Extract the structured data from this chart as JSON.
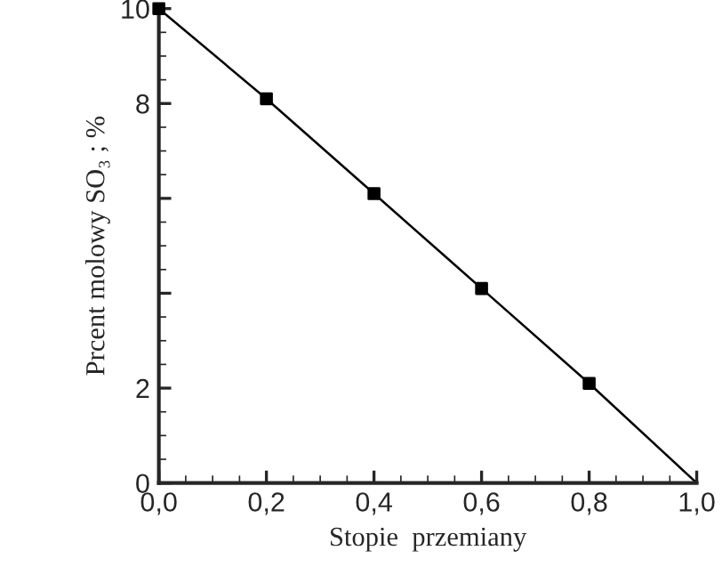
{
  "chart_data": {
    "type": "line",
    "xlabel": "Stopie  przemiany",
    "ylabel": "Prcent molowy SO₃ ; %",
    "series": [
      {
        "color": "#000000",
        "marker": "none",
        "x": [
          0,
          0.2,
          0.4,
          0.6,
          0.8,
          1.0
        ],
        "values": [
          10,
          8.1,
          6.1,
          4.1,
          2.1,
          0
        ]
      },
      {
        "type": "scatter",
        "color": "#000000",
        "marker": "square",
        "x": [
          0,
          0.2,
          0.4,
          0.6,
          0.8
        ],
        "values": [
          10,
          8.1,
          6.1,
          4.1,
          2.1
        ]
      }
    ],
    "xlim": [
      0,
      1.0
    ],
    "ylim": [
      0,
      10
    ],
    "xticks": [
      {
        "value": 0,
        "label": "0,0"
      },
      {
        "value": 0.2,
        "label": "0,2"
      },
      {
        "value": 0.4,
        "label": "0,4"
      },
      {
        "value": 0.6,
        "label": "0,6"
      },
      {
        "value": 0.8,
        "label": "0,8"
      },
      {
        "value": 1.0,
        "label": "1,0"
      }
    ],
    "yticks": [
      0,
      2,
      {
        "value": 4,
        "label": null
      },
      {
        "value": 6,
        "label": null
      },
      8,
      10
    ],
    "grid": false
  }
}
